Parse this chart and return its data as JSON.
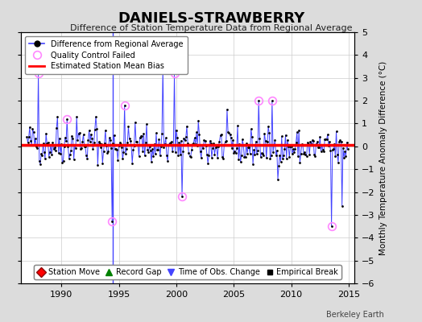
{
  "title": "DANIELS-STRAWBERRY",
  "subtitle": "Difference of Station Temperature Data from Regional Average",
  "ylabel_right": "Monthly Temperature Anomaly Difference (°C)",
  "xlim": [
    1986.5,
    2015.5
  ],
  "ylim": [
    -6,
    5
  ],
  "yticks": [
    -6,
    -5,
    -4,
    -3,
    -2,
    -1,
    0,
    1,
    2,
    3,
    4,
    5
  ],
  "xticks": [
    1990,
    1995,
    2000,
    2005,
    2010,
    2015
  ],
  "bias_value": 0.05,
  "time_of_obs_change_year": 1994.5,
  "background_color": "#dcdcdc",
  "plot_bg_color": "#ffffff",
  "line_color": "#4444ff",
  "marker_color": "#000000",
  "bias_line_color": "#ff0000",
  "qc_fail_color": "#ff88ff",
  "grid_color": "#cccccc",
  "seed": 42,
  "start_year": 1987.0,
  "end_year": 2014.99,
  "spike_points": [
    [
      1988.0,
      3.2
    ],
    [
      1989.7,
      1.3
    ],
    [
      1990.5,
      1.2
    ],
    [
      1991.3,
      1.3
    ],
    [
      1993.0,
      1.3
    ],
    [
      1994.4,
      -3.3
    ],
    [
      1995.5,
      1.8
    ],
    [
      1998.8,
      3.5
    ],
    [
      1999.8,
      3.2
    ],
    [
      2000.5,
      -2.2
    ],
    [
      2007.2,
      2.0
    ],
    [
      2008.3,
      2.0
    ],
    [
      2013.5,
      -3.5
    ],
    [
      2014.4,
      -2.6
    ]
  ],
  "qc_fail_times": [
    1988.0,
    1990.5,
    1994.4,
    1995.5,
    1998.8,
    1999.8,
    2000.5,
    2007.2,
    2008.3,
    2013.5
  ]
}
